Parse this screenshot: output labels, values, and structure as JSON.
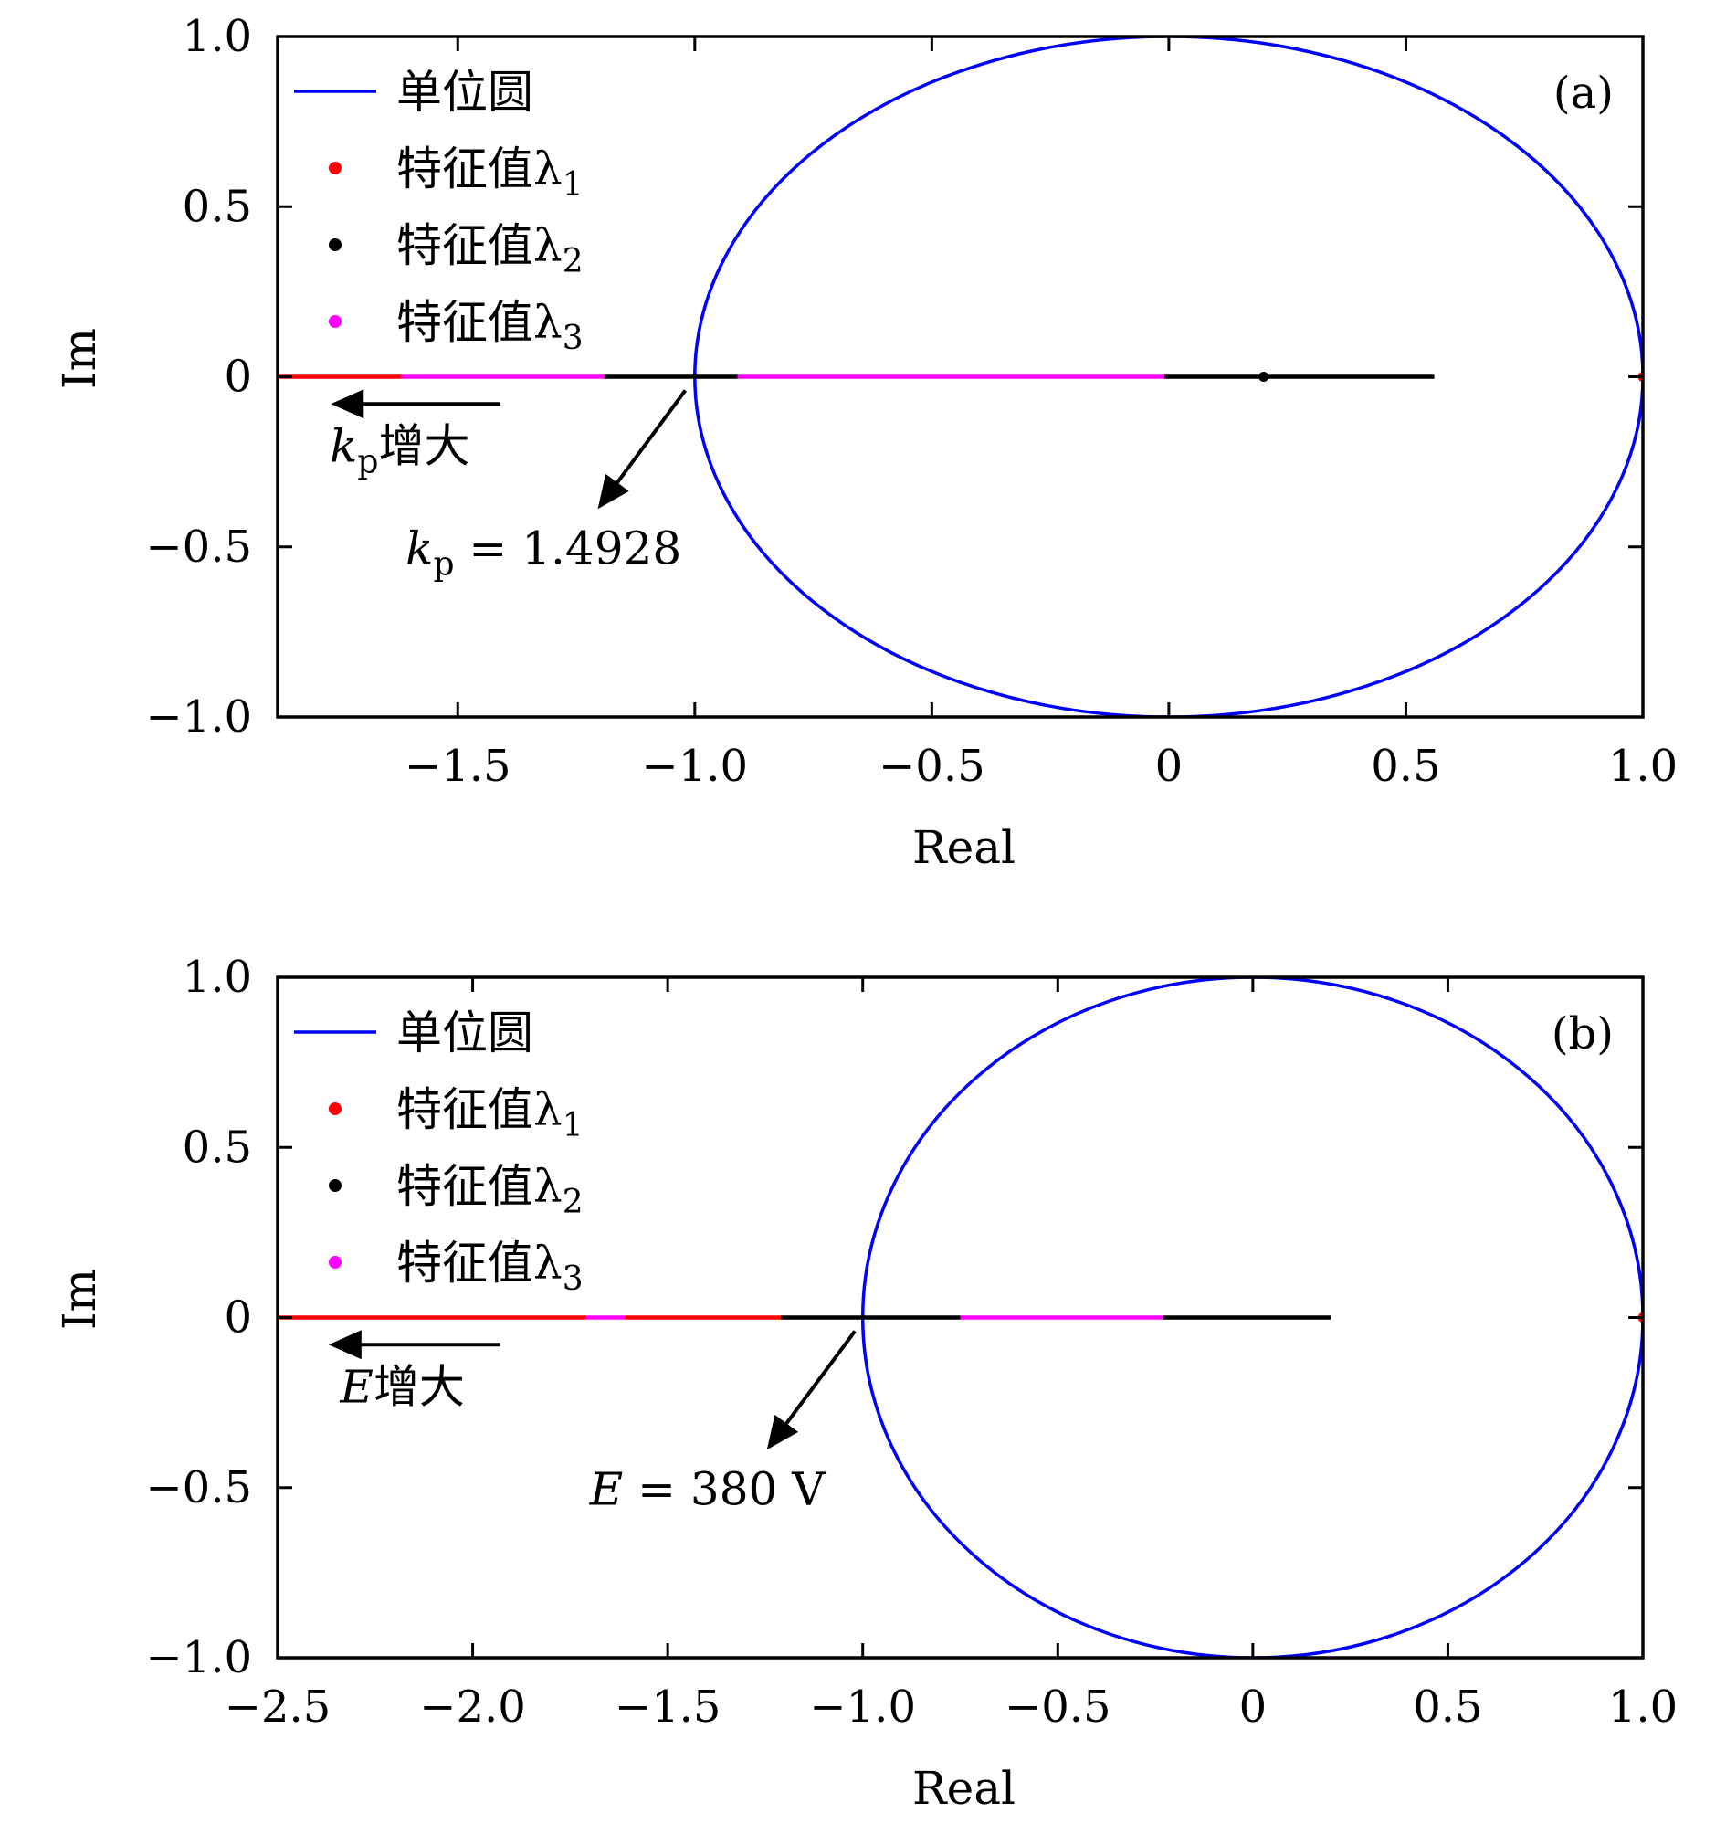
{
  "chart_data": [
    {
      "type": "line",
      "panel_label": "(a)",
      "xlabel": "Real",
      "ylabel": "Im",
      "xlim": [
        -1.88,
        1.0
      ],
      "ylim": [
        -1.0,
        1.0
      ],
      "xticks": [
        -1.5,
        -1.0,
        -0.5,
        0,
        0.5,
        1.0
      ],
      "xtick_labels": [
        "−1.5",
        "−1.0",
        "−0.5",
        "0",
        "0.5",
        "1.0"
      ],
      "yticks": [
        1.0,
        0.5,
        0,
        -0.5,
        -1.0
      ],
      "ytick_labels": [
        "1.0",
        "0.5",
        "0",
        "−0.5",
        "−1.0"
      ],
      "grid": false,
      "legend_position": "top-left",
      "legend": [
        {
          "label": "单位圆",
          "marker": "line",
          "color": "#0000ff"
        },
        {
          "label": "特征值λ",
          "sub": "1",
          "marker": "dot",
          "color": "#ff0000"
        },
        {
          "label": "特征值λ",
          "sub": "2",
          "marker": "dot",
          "color": "#000000"
        },
        {
          "label": "特征值λ",
          "sub": "3",
          "marker": "dot",
          "color": "#ff00ff"
        }
      ],
      "series": [
        {
          "name": "单位圆",
          "kind": "circle",
          "center": [
            0,
            0
          ],
          "radius": 1,
          "color": "#0000ff"
        },
        {
          "name": "特征值λ1",
          "color": "#ff0000",
          "segments": [
            [
              -1.88,
              -1.62
            ]
          ],
          "points": [
            [
              1.0,
              0
            ]
          ]
        },
        {
          "name": "特征值λ2",
          "color": "#000000",
          "segments": [
            [
              -1.19,
              -0.91
            ],
            [
              -0.01,
              0.56
            ]
          ],
          "points": [
            [
              0.2,
              0
            ]
          ]
        },
        {
          "name": "特征值λ3",
          "color": "#ff00ff",
          "segments": [
            [
              -1.62,
              -1.19
            ],
            [
              -0.91,
              -0.01
            ]
          ]
        }
      ],
      "annotations": [
        {
          "kind": "arrow",
          "from": [
            -1.41,
            -0.08
          ],
          "to": [
            -1.76,
            -0.08
          ]
        },
        {
          "kind": "arrow",
          "from": [
            -1.02,
            -0.04
          ],
          "to": [
            -1.2,
            -0.38
          ]
        },
        {
          "kind": "text",
          "italic": "k",
          "sub": "p",
          "text": "增大",
          "at": [
            -1.77,
            -0.25
          ]
        },
        {
          "kind": "text",
          "italic": "k",
          "sub": "p",
          "text": " = 1.4928",
          "at": [
            -1.61,
            -0.55
          ]
        }
      ]
    },
    {
      "type": "line",
      "panel_label": "(b)",
      "xlabel": "Real",
      "ylabel": "Im",
      "xlim": [
        -2.5,
        1.0
      ],
      "ylim": [
        -1.0,
        1.0
      ],
      "xticks": [
        -2.5,
        -2.0,
        -1.5,
        -1.0,
        -0.5,
        0,
        0.5,
        1.0
      ],
      "xtick_labels": [
        "−2.5",
        "−2.0",
        "−1.5",
        "−1.0",
        "−0.5",
        "0",
        "0.5",
        "1.0"
      ],
      "yticks": [
        1.0,
        0.5,
        0,
        -0.5,
        -1.0
      ],
      "ytick_labels": [
        "1.0",
        "0.5",
        "0",
        "−0.5",
        "−1.0"
      ],
      "grid": false,
      "legend_position": "top-left",
      "legend": [
        {
          "label": "单位圆",
          "marker": "line",
          "color": "#0000ff"
        },
        {
          "label": "特征值λ",
          "sub": "1",
          "marker": "dot",
          "color": "#ff0000"
        },
        {
          "label": "特征值λ",
          "sub": "2",
          "marker": "dot",
          "color": "#000000"
        },
        {
          "label": "特征值λ",
          "sub": "3",
          "marker": "dot",
          "color": "#ff00ff"
        }
      ],
      "series": [
        {
          "name": "单位圆",
          "kind": "circle",
          "center": [
            0,
            0
          ],
          "radius": 1,
          "color": "#0000ff"
        },
        {
          "name": "特征值λ1",
          "color": "#ff0000",
          "segments": [
            [
              -2.5,
              -1.71
            ],
            [
              -1.61,
              -1.21
            ]
          ],
          "points": [
            [
              1.0,
              0
            ]
          ]
        },
        {
          "name": "特征值λ2",
          "color": "#000000",
          "segments": [
            [
              -1.21,
              -0.75
            ],
            [
              -0.23,
              0.2
            ]
          ]
        },
        {
          "name": "特征值λ3",
          "color": "#ff00ff",
          "segments": [
            [
              -1.71,
              -1.61
            ],
            [
              -0.75,
              -0.23
            ]
          ]
        }
      ],
      "annotations": [
        {
          "kind": "arrow",
          "from": [
            -1.93,
            -0.08
          ],
          "to": [
            -2.36,
            -0.08
          ]
        },
        {
          "kind": "arrow",
          "from": [
            -1.02,
            -0.04
          ],
          "to": [
            -1.24,
            -0.38
          ]
        },
        {
          "kind": "text",
          "italic": "E",
          "text": "增大",
          "at": [
            -2.34,
            -0.25
          ]
        },
        {
          "kind": "text",
          "italic": "E",
          "text": " = 380 V",
          "at": [
            -1.7,
            -0.55
          ]
        }
      ]
    }
  ]
}
